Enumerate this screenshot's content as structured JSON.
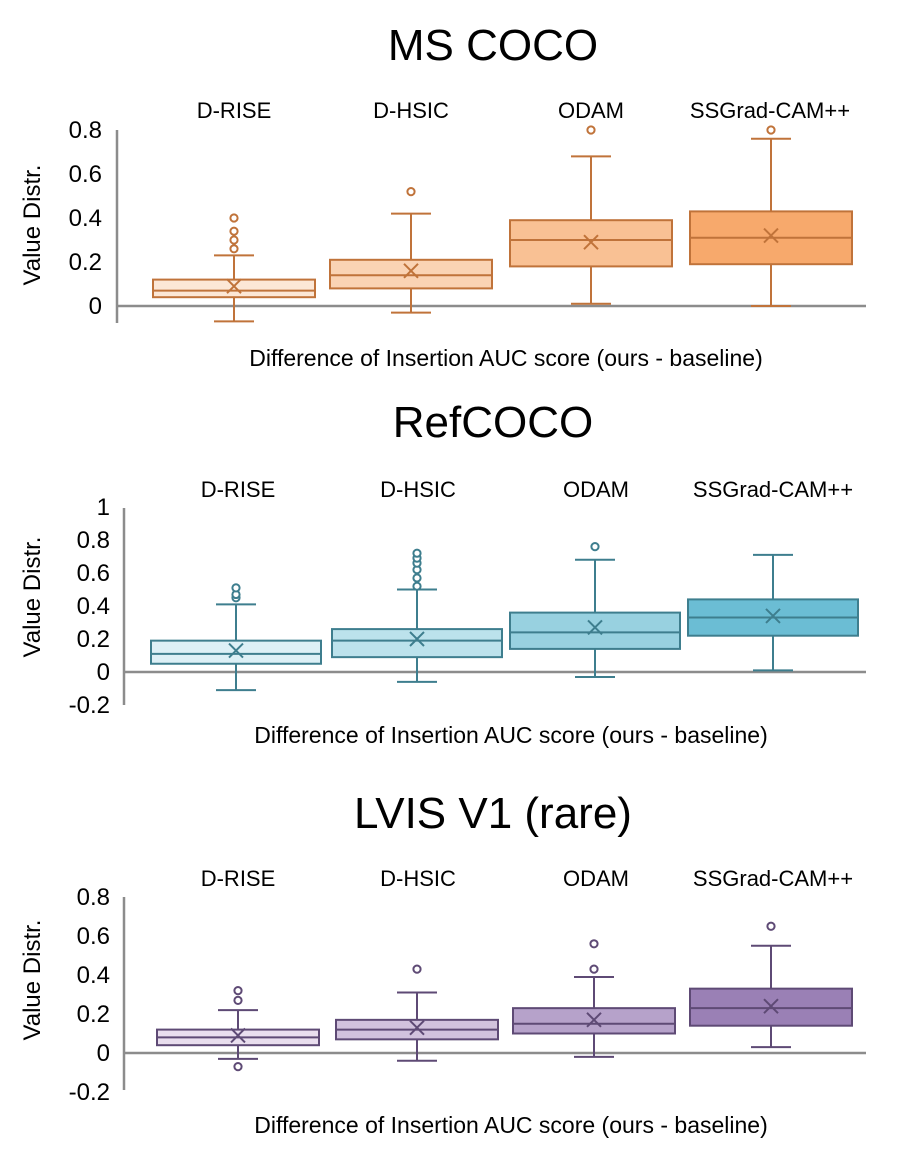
{
  "chart_data": [
    {
      "type": "box",
      "title": "MS COCO",
      "ylabel": "Value Distr.",
      "xlabel": "Difference of Insertion AUC score (ours - baseline)",
      "yticks": [
        0,
        0.2,
        0.4,
        0.6,
        0.8
      ],
      "ytick_labels": [
        "0",
        "0.2",
        "0.4",
        "0.6",
        "0.8"
      ],
      "ylim": [
        -0.08,
        0.8
      ],
      "stroke_color": "#C0733A",
      "categories": [
        "D-RISE",
        "D-HSIC",
        "ODAM",
        "SSGrad-CAM++"
      ],
      "boxes": [
        {
          "name": "D-RISE",
          "fill": "#FCE7D6",
          "whisker_low": -0.07,
          "q1": 0.04,
          "median": 0.07,
          "q3": 0.12,
          "whisker_high": 0.23,
          "mean": 0.09,
          "outliers": [
            0.26,
            0.3,
            0.34,
            0.4
          ]
        },
        {
          "name": "D-HSIC",
          "fill": "#FAD3B4",
          "whisker_low": -0.03,
          "q1": 0.08,
          "median": 0.14,
          "q3": 0.21,
          "whisker_high": 0.42,
          "mean": 0.16,
          "outliers": [
            0.52
          ]
        },
        {
          "name": "ODAM",
          "fill": "#F9C194",
          "whisker_low": 0.01,
          "q1": 0.18,
          "median": 0.3,
          "q3": 0.39,
          "whisker_high": 0.68,
          "mean": 0.29,
          "outliers": [
            0.8
          ]
        },
        {
          "name": "SSGrad-CAM++",
          "fill": "#F7A96C",
          "whisker_low": 0.0,
          "q1": 0.19,
          "median": 0.31,
          "q3": 0.43,
          "whisker_high": 0.76,
          "mean": 0.32,
          "outliers": [
            0.8
          ]
        }
      ]
    },
    {
      "type": "box",
      "title": "RefCOCO",
      "ylabel": "Value Distr.",
      "xlabel": "Difference of Insertion AUC score (ours - baseline)",
      "yticks": [
        -0.2,
        0,
        0.2,
        0.4,
        0.6,
        0.8,
        1
      ],
      "ytick_labels": [
        "-0.2",
        "0",
        "0.2",
        "0.4",
        "0.6",
        "0.8",
        "1"
      ],
      "ylim": [
        -0.2,
        1
      ],
      "stroke_color": "#3E7E8E",
      "categories": [
        "D-RISE",
        "D-HSIC",
        "ODAM",
        "SSGrad-CAM++"
      ],
      "boxes": [
        {
          "name": "D-RISE",
          "fill": "#DDF0F6",
          "whisker_low": -0.11,
          "q1": 0.05,
          "median": 0.11,
          "q3": 0.19,
          "whisker_high": 0.41,
          "mean": 0.13,
          "outliers": [
            0.45,
            0.47,
            0.51
          ]
        },
        {
          "name": "D-HSIC",
          "fill": "#BCE2EC",
          "whisker_low": -0.06,
          "q1": 0.09,
          "median": 0.19,
          "q3": 0.26,
          "whisker_high": 0.5,
          "mean": 0.2,
          "outliers": [
            0.52,
            0.57,
            0.62,
            0.66,
            0.69,
            0.72
          ]
        },
        {
          "name": "ODAM",
          "fill": "#98D1E0",
          "whisker_low": -0.03,
          "q1": 0.14,
          "median": 0.24,
          "q3": 0.36,
          "whisker_high": 0.68,
          "mean": 0.27,
          "outliers": [
            0.76
          ]
        },
        {
          "name": "SSGrad-CAM++",
          "fill": "#6BBDD4",
          "whisker_low": 0.01,
          "q1": 0.22,
          "median": 0.33,
          "q3": 0.44,
          "whisker_high": 0.71,
          "mean": 0.34,
          "outliers": []
        }
      ]
    },
    {
      "type": "box",
      "title": "LVIS V1 (rare)",
      "ylabel": "Value Distr.",
      "xlabel": "Difference of Insertion AUC score (ours - baseline)",
      "yticks": [
        -0.2,
        0,
        0.2,
        0.4,
        0.6,
        0.8
      ],
      "ytick_labels": [
        "-0.2",
        "0",
        "0.2",
        "0.4",
        "0.6",
        "0.8"
      ],
      "ylim": [
        -0.2,
        0.8
      ],
      "stroke_color": "#5E4A75",
      "categories": [
        "D-RISE",
        "D-HSIC",
        "ODAM",
        "SSGrad-CAM++"
      ],
      "boxes": [
        {
          "name": "D-RISE",
          "fill": "#E9DEEE",
          "whisker_low": -0.03,
          "q1": 0.04,
          "median": 0.08,
          "q3": 0.12,
          "whisker_high": 0.22,
          "mean": 0.09,
          "outliers": [
            -0.07,
            0.27,
            0.32
          ]
        },
        {
          "name": "D-HSIC",
          "fill": "#D1C2DD",
          "whisker_low": -0.04,
          "q1": 0.07,
          "median": 0.12,
          "q3": 0.17,
          "whisker_high": 0.31,
          "mean": 0.13,
          "outliers": [
            0.43
          ]
        },
        {
          "name": "ODAM",
          "fill": "#B6A2CA",
          "whisker_low": -0.02,
          "q1": 0.1,
          "median": 0.15,
          "q3": 0.23,
          "whisker_high": 0.39,
          "mean": 0.17,
          "outliers": [
            0.43,
            0.56
          ]
        },
        {
          "name": "SSGrad-CAM++",
          "fill": "#9A80B5",
          "whisker_low": 0.03,
          "q1": 0.14,
          "median": 0.23,
          "q3": 0.33,
          "whisker_high": 0.55,
          "mean": 0.24,
          "outliers": [
            0.65
          ]
        }
      ]
    }
  ]
}
